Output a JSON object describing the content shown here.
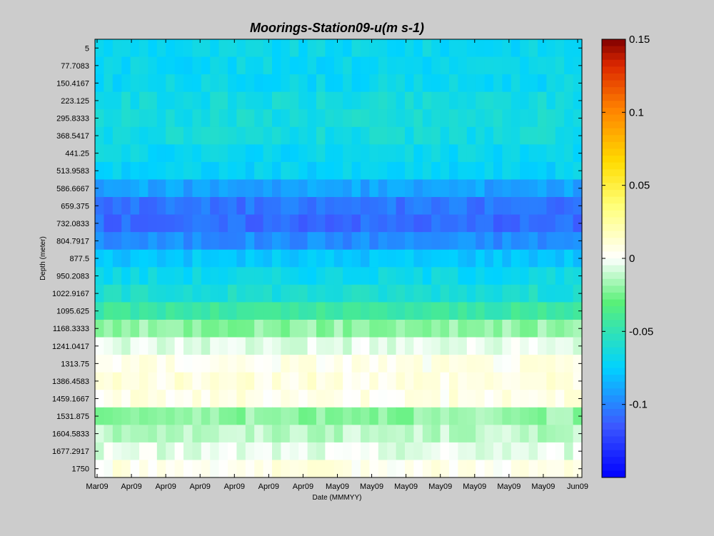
{
  "chart_data": {
    "type": "heatmap",
    "title": "Moorings-Station09-u(m s-1)",
    "xlabel": "Date (MMMYY)",
    "ylabel": "Depth (meter)",
    "x_tick_labels": [
      "Mar09",
      "Apr09",
      "Apr09",
      "Apr09",
      "Apr09",
      "Apr09",
      "Apr09",
      "May09",
      "May09",
      "May09",
      "May09",
      "May09",
      "May09",
      "May09",
      "Jun09"
    ],
    "y_tick_labels": [
      "5",
      "77.7083",
      "150.4167",
      "223.125",
      "295.8333",
      "368.5417",
      "441.25",
      "513.9583",
      "586.6667",
      "659.375",
      "732.0833",
      "804.7917",
      "877.5",
      "950.2083",
      "1022.9167",
      "1095.625",
      "1168.3333",
      "1241.0417",
      "1313.75",
      "1386.4583",
      "1459.1667",
      "1531.875",
      "1604.5833",
      "1677.2917",
      "1750"
    ],
    "depths": [
      5,
      77.7083,
      150.4167,
      223.125,
      295.8333,
      368.5417,
      441.25,
      513.9583,
      586.6667,
      659.375,
      732.0833,
      804.7917,
      877.5,
      950.2083,
      1022.9167,
      1095.625,
      1168.3333,
      1241.0417,
      1313.75,
      1386.4583,
      1459.1667,
      1531.875,
      1604.5833,
      1677.2917,
      1750
    ],
    "row_mean_values": [
      -0.07,
      -0.07,
      -0.07,
      -0.065,
      -0.063,
      -0.065,
      -0.07,
      -0.073,
      -0.09,
      -0.105,
      -0.108,
      -0.097,
      -0.078,
      -0.068,
      -0.06,
      -0.045,
      -0.02,
      -0.005,
      0.005,
      0.008,
      0.006,
      -0.02,
      -0.012,
      -0.005,
      0.005
    ],
    "colorbar": {
      "min": -0.15,
      "max": 0.15,
      "tick_labels": [
        "0.15",
        "0.1",
        "0.05",
        "0",
        "-0.05",
        "-0.1"
      ],
      "tick_values": [
        0.15,
        0.1,
        0.05,
        0,
        -0.05,
        -0.1
      ],
      "colormap": "jet-with-white-center"
    },
    "grid": false,
    "legend": "colorbar-right"
  }
}
